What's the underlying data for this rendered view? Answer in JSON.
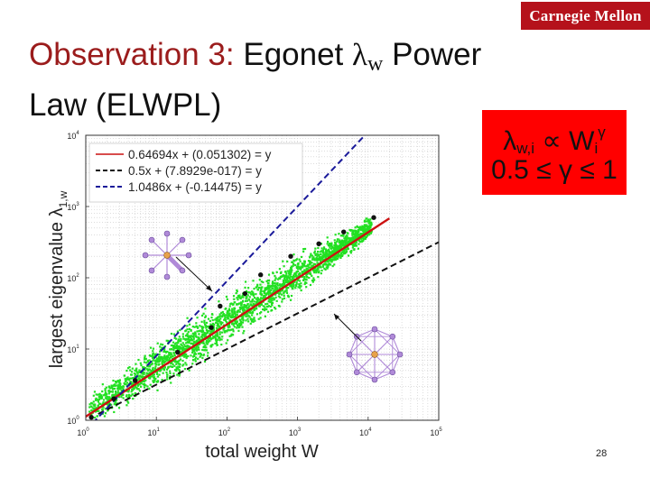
{
  "header": {
    "brand": "Carnegie Mellon"
  },
  "slide": {
    "title_red": "Observation 3:",
    "title_black_a": " Egonet ",
    "title_lambda": "λ",
    "title_sub": "w",
    "title_black_b": " Power",
    "title_line2": "Law (ELWPL)",
    "page_number": "28"
  },
  "formula": {
    "line1_main": "λ",
    "line1_sub": "w,i",
    "line1_rel": " ∝ W",
    "line1_sub2": "i",
    "line1_sup": "γ",
    "line2": "0.5 ≤ γ ≤ 1"
  },
  "colors": {
    "accent_red": "#b5121b",
    "title_red": "#9b1c1c",
    "formula_bg": "#ff0000",
    "scatter_green": "#22e022",
    "fit_red": "#cc1111",
    "line_dark_blue": "#1a1a9a",
    "node_purple": "#b08ad8",
    "hub_orange": "#e8a24a"
  },
  "chart_data": {
    "type": "scatter",
    "xscale": "log",
    "yscale": "log",
    "xlim": [
      1,
      100000
    ],
    "ylim": [
      1,
      10000
    ],
    "grid": "on",
    "legend_placement": "top-left",
    "xlabel": "total weight W",
    "ylabel": "largest eigenvalue λ",
    "ylabel_sub": "1,w",
    "xticks": [
      {
        "value": 1,
        "base": "10",
        "exp": "0"
      },
      {
        "value": 10,
        "base": "10",
        "exp": "1"
      },
      {
        "value": 100,
        "base": "10",
        "exp": "2"
      },
      {
        "value": 1000,
        "base": "10",
        "exp": "3"
      },
      {
        "value": 10000,
        "base": "10",
        "exp": "4"
      },
      {
        "value": 100000,
        "base": "10",
        "exp": "5"
      }
    ],
    "yticks": [
      {
        "value": 1,
        "base": "10",
        "exp": "0"
      },
      {
        "value": 10,
        "base": "10",
        "exp": "1"
      },
      {
        "value": 100,
        "base": "10",
        "exp": "2"
      },
      {
        "value": 1000,
        "base": "10",
        "exp": "3"
      },
      {
        "value": 10000,
        "base": "10",
        "exp": "4"
      }
    ],
    "series": [
      {
        "name": "0.64694x + (0.051302) = y",
        "kind": "fit",
        "slope": 0.64694,
        "intercept": 0.051302,
        "color": "#cc1111",
        "dash": "solid",
        "x_range": [
          1,
          20000
        ]
      },
      {
        "name": "0.5x + (7.8929e-017) = y",
        "kind": "fit",
        "slope": 0.5,
        "intercept": 7.8929e-17,
        "color": "#111111",
        "dash": "dashed",
        "x_range": [
          1.5,
          100000
        ]
      },
      {
        "name": "1.0486x + (-0.14475) = y",
        "kind": "fit",
        "slope": 1.0486,
        "intercept": -0.14475,
        "color": "#1a1a9a",
        "dash": "dashed",
        "x_range": [
          1,
          37000
        ]
      }
    ],
    "binned_medians": [
      {
        "x": 1.2,
        "y": 1.1
      },
      {
        "x": 2.5,
        "y": 2.0
      },
      {
        "x": 5,
        "y": 3.6
      },
      {
        "x": 20,
        "y": 9
      },
      {
        "x": 60,
        "y": 20
      },
      {
        "x": 80,
        "y": 40
      },
      {
        "x": 180,
        "y": 60
      },
      {
        "x": 300,
        "y": 110
      },
      {
        "x": 800,
        "y": 200
      },
      {
        "x": 2000,
        "y": 300
      },
      {
        "x": 4500,
        "y": 440
      },
      {
        "x": 12000,
        "y": 700
      }
    ],
    "scatter_note": "dense green point cloud of individual egonets"
  }
}
